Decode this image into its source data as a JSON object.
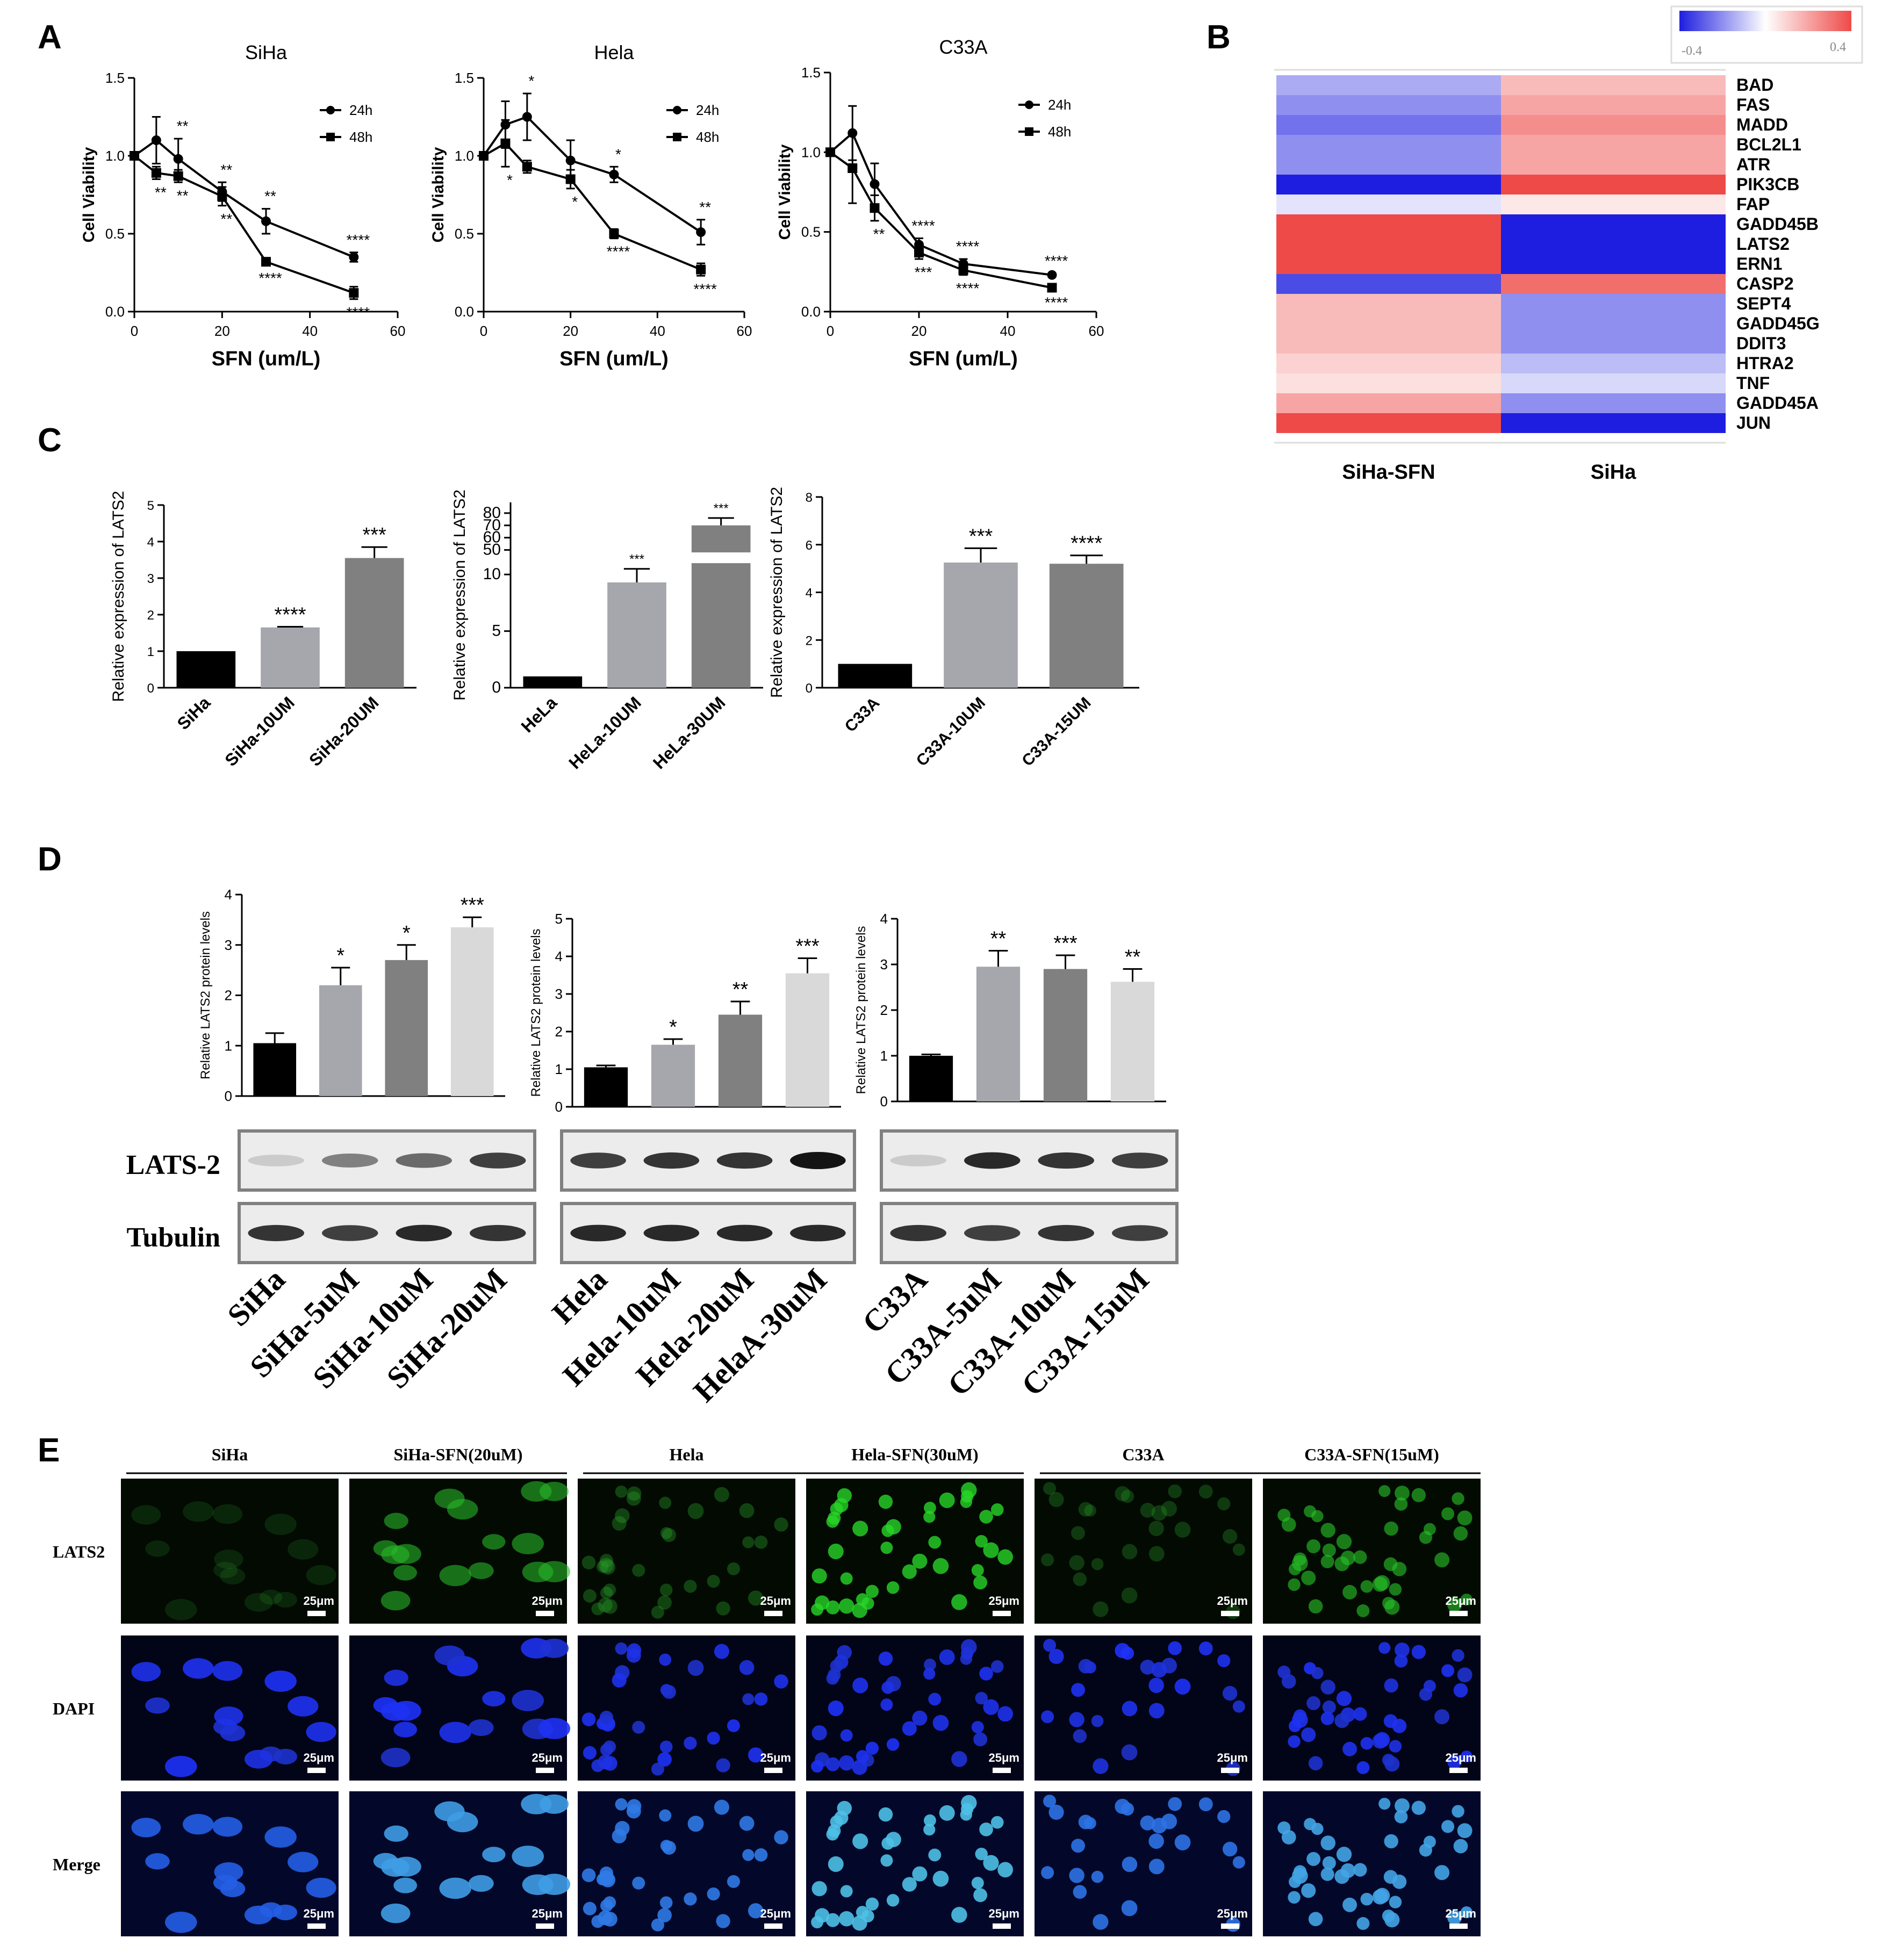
{
  "panel_letters": [
    "A",
    "B",
    "C",
    "D",
    "E"
  ],
  "colors": {
    "bar_black": "#000000",
    "bar_grey1": "#a6a6ad",
    "bar_grey2": "#808080",
    "bar_grey3": "#d9d9d9",
    "heat_blue": "#1e1ee0",
    "heat_red": "#ee4a48",
    "green": "#2bd12b",
    "blue": "#2244ff"
  },
  "chart_data": [
    {
      "type": "line",
      "title": "SiHa",
      "xlabel": "SFN (um/L)",
      "ylabel": "Cell Viability",
      "xlim": [
        0,
        60
      ],
      "ylim": [
        0,
        1.5
      ],
      "xticks": [
        "0",
        "20",
        "40",
        "60"
      ],
      "yticks": [
        "0.0",
        "0.5",
        "1.0",
        "1.5"
      ],
      "legend": "top-right",
      "series": [
        {
          "name": "24h",
          "marker": "circle",
          "x": [
            0,
            5,
            10,
            20,
            30,
            50
          ],
          "y": [
            1.0,
            1.1,
            0.98,
            0.77,
            0.58,
            0.35
          ],
          "err": [
            0,
            0.15,
            0.13,
            0.06,
            0.08,
            0.03
          ],
          "stars": [
            "",
            "",
            "**",
            "**",
            "**",
            "****"
          ]
        },
        {
          "name": "48h",
          "marker": "square",
          "x": [
            0,
            5,
            10,
            20,
            30,
            50
          ],
          "y": [
            1.0,
            0.89,
            0.87,
            0.74,
            0.32,
            0.12
          ],
          "err": [
            0,
            0.04,
            0.04,
            0.06,
            0.02,
            0.04
          ],
          "stars": [
            "",
            "**",
            "**",
            "**",
            "****",
            "****"
          ]
        }
      ]
    },
    {
      "type": "line",
      "title": "Hela",
      "xlabel": "SFN (um/L)",
      "ylabel": "Cell Viability",
      "xlim": [
        0,
        60
      ],
      "ylim": [
        0,
        1.5
      ],
      "xticks": [
        "0",
        "20",
        "40",
        "60"
      ],
      "yticks": [
        "0.0",
        "0.5",
        "1.0",
        "1.5"
      ],
      "legend": "top-right",
      "series": [
        {
          "name": "24h",
          "marker": "circle",
          "x": [
            0,
            5,
            10,
            20,
            30,
            50
          ],
          "y": [
            1.0,
            1.2,
            1.25,
            0.97,
            0.88,
            0.51
          ],
          "err": [
            0,
            0.15,
            0.15,
            0.13,
            0.05,
            0.08
          ],
          "stars": [
            "",
            "",
            "*",
            "",
            "*",
            "**"
          ]
        },
        {
          "name": "48h",
          "marker": "square",
          "x": [
            0,
            5,
            10,
            20,
            30,
            50
          ],
          "y": [
            1.0,
            1.08,
            0.93,
            0.85,
            0.5,
            0.27
          ],
          "err": [
            0,
            0.15,
            0.04,
            0.06,
            0.03,
            0.04
          ],
          "stars": [
            "",
            "*",
            "",
            "*",
            "****",
            "****"
          ]
        }
      ]
    },
    {
      "type": "line",
      "title": "C33A",
      "xlabel": "SFN (um/L)",
      "ylabel": "Cell Viability",
      "xlim": [
        0,
        60
      ],
      "ylim": [
        0,
        1.5
      ],
      "xticks": [
        "0",
        "20",
        "40",
        "60"
      ],
      "yticks": [
        "0.0",
        "0.5",
        "1.0",
        "1.5"
      ],
      "legend": "top-right",
      "series": [
        {
          "name": "24h",
          "marker": "circle",
          "x": [
            0,
            5,
            10,
            20,
            30,
            50
          ],
          "y": [
            1.0,
            1.12,
            0.8,
            0.42,
            0.3,
            0.23
          ],
          "err": [
            0,
            0.17,
            0.13,
            0.04,
            0.03,
            0.01
          ],
          "stars": [
            "",
            "",
            "",
            "****",
            "****",
            "****"
          ]
        },
        {
          "name": "48h",
          "marker": "square",
          "x": [
            0,
            5,
            10,
            20,
            30,
            50
          ],
          "y": [
            1.0,
            0.9,
            0.65,
            0.37,
            0.26,
            0.15
          ],
          "err": [
            0,
            0.22,
            0.08,
            0.04,
            0.03,
            0.01
          ],
          "stars": [
            "",
            "",
            "**",
            "***",
            "****",
            "****"
          ]
        }
      ]
    },
    {
      "type": "heatmap",
      "columns": [
        "SiHa-SFN",
        "SiHa"
      ],
      "rows": [
        "BAD",
        "FAS",
        "MADD",
        "BCL2L1",
        "ATR",
        "PIK3CB",
        "FAP",
        "GADD45B",
        "LATS2",
        "ERN1",
        "CASP2",
        "SEPT4",
        "GADD45G",
        "DDIT3",
        "HTRA2",
        "TNF",
        "GADD45A",
        "JUN"
      ],
      "values": [
        [
          -0.15,
          0.15
        ],
        [
          -0.2,
          0.2
        ],
        [
          -0.25,
          0.25
        ],
        [
          -0.2,
          0.2
        ],
        [
          -0.2,
          0.2
        ],
        [
          -0.4,
          0.4
        ],
        [
          -0.05,
          0.05
        ],
        [
          0.4,
          -0.4
        ],
        [
          0.4,
          -0.4
        ],
        [
          0.4,
          -0.4
        ],
        [
          -0.32,
          0.32
        ],
        [
          0.15,
          -0.2
        ],
        [
          0.15,
          -0.2
        ],
        [
          0.15,
          -0.2
        ],
        [
          0.1,
          -0.12
        ],
        [
          0.07,
          -0.07
        ],
        [
          0.2,
          -0.2
        ],
        [
          0.4,
          -0.4
        ]
      ],
      "colorbar": {
        "min": "-0.4",
        "max": "0.4"
      }
    },
    {
      "type": "bar",
      "ylabel": "Relative expression of LATS2",
      "categories": [
        "SiHa",
        "SiHa-10UM",
        "SiHa-20UM"
      ],
      "values": [
        1.0,
        1.65,
        3.55
      ],
      "err": [
        0,
        0.02,
        0.3
      ],
      "stars": [
        "",
        "****",
        "***"
      ],
      "ylim": [
        0,
        5
      ],
      "yticks": [
        "0",
        "1",
        "2",
        "3",
        "4",
        "5"
      ],
      "fills": [
        "#000000",
        "#a6a6ad",
        "#808080"
      ]
    },
    {
      "type": "bar",
      "ylabel": "Relative expression of LATS2",
      "categories": [
        "HeLa",
        "HeLa-10UM",
        "HeLa-30UM"
      ],
      "values": [
        1.0,
        9.3,
        70
      ],
      "err": [
        0,
        1.2,
        6
      ],
      "stars": [
        "",
        "***",
        "***"
      ],
      "ylim": [
        0,
        80
      ],
      "axis_break": [
        11,
        48
      ],
      "yticks": [
        "0",
        "5",
        "10",
        "50",
        "60",
        "70",
        "80"
      ],
      "fills": [
        "#000000",
        "#a6a6ad",
        "#808080"
      ]
    },
    {
      "type": "bar",
      "ylabel": "Relative expression of LATS2",
      "categories": [
        "C33A",
        "C33A-10UM",
        "C33A-15UM"
      ],
      "values": [
        1.0,
        5.25,
        5.2
      ],
      "err": [
        0,
        0.6,
        0.35
      ],
      "stars": [
        "",
        "***",
        "****"
      ],
      "ylim": [
        0,
        8
      ],
      "yticks": [
        "0",
        "2",
        "4",
        "6",
        "8"
      ],
      "fills": [
        "#000000",
        "#a6a6ad",
        "#808080"
      ]
    },
    {
      "type": "bar",
      "ylabel": "Relative LATS2 protein levels",
      "categories": [
        "SiHa",
        "SiHa-5uM",
        "SiHa-10uM",
        "SiHa-20uM"
      ],
      "values": [
        1.05,
        2.2,
        2.7,
        3.35
      ],
      "err": [
        0.2,
        0.35,
        0.3,
        0.2
      ],
      "stars": [
        "",
        "*",
        "*",
        "***"
      ],
      "ylim": [
        0,
        4
      ],
      "yticks": [
        "0",
        "1",
        "2",
        "3",
        "4"
      ],
      "fills": [
        "#000000",
        "#a6a6ad",
        "#808080",
        "#d9d9d9"
      ]
    },
    {
      "type": "bar",
      "ylabel": "Relative LATS2 protein levels",
      "categories": [
        "Hela",
        "Hela-10uM",
        "Hela-20uM",
        "HelaA-30uM"
      ],
      "values": [
        1.05,
        1.65,
        2.45,
        3.55
      ],
      "err": [
        0.05,
        0.15,
        0.35,
        0.4
      ],
      "stars": [
        "",
        "*",
        "**",
        "***"
      ],
      "ylim": [
        0,
        5
      ],
      "yticks": [
        "0",
        "1",
        "2",
        "3",
        "4",
        "5"
      ],
      "fills": [
        "#000000",
        "#a6a6ad",
        "#808080",
        "#d9d9d9"
      ]
    },
    {
      "type": "bar",
      "ylabel": "Relative LATS2 protein levels",
      "categories": [
        "C33A",
        "C33A-5uM",
        "C33A-10uM",
        "C33A-15uM"
      ],
      "values": [
        1.0,
        2.95,
        2.9,
        2.62
      ],
      "err": [
        0.03,
        0.35,
        0.3,
        0.28
      ],
      "stars": [
        "",
        "**",
        "***",
        "**"
      ],
      "ylim": [
        0,
        4
      ],
      "yticks": [
        "0",
        "1",
        "2",
        "3",
        "4"
      ],
      "fills": [
        "#000000",
        "#a6a6ad",
        "#808080",
        "#d9d9d9"
      ]
    }
  ],
  "western": {
    "row_labels": [
      "LATS-2",
      "Tubulin"
    ],
    "groups": [
      {
        "labels": [
          "SiHa",
          "SiHa-5uM",
          "SiHa-10uM",
          "SiHa-20uM"
        ],
        "lats": [
          0.15,
          0.5,
          0.6,
          0.8
        ],
        "tub": [
          0.85,
          0.8,
          0.9,
          0.85
        ]
      },
      {
        "labels": [
          "Hela",
          "Hela-10uM",
          "Hela-20uM",
          "HelaA-30uM"
        ],
        "lats": [
          0.8,
          0.85,
          0.85,
          1.0
        ],
        "tub": [
          0.9,
          0.9,
          0.9,
          0.9
        ]
      },
      {
        "labels": [
          "C33A",
          "C33A-5uM",
          "C33A-10uM",
          "C33A-15uM"
        ],
        "lats": [
          0.15,
          0.9,
          0.85,
          0.8
        ],
        "tub": [
          0.85,
          0.8,
          0.85,
          0.8
        ]
      }
    ]
  },
  "microscopy": {
    "column_headers": [
      "SiHa",
      "SiHa-SFN(20uM)",
      "Hela",
      "Hela-SFN(30uM)",
      "C33A",
      "C33A-SFN(15uM)"
    ],
    "row_labels": [
      "LATS2",
      "DAPI",
      "Merge"
    ],
    "scale_bar": "25μm",
    "cell_counts": [
      14,
      16,
      34,
      40,
      26,
      42
    ],
    "green_intensity": [
      0.1,
      0.55,
      0.3,
      0.8,
      0.25,
      0.6
    ]
  }
}
